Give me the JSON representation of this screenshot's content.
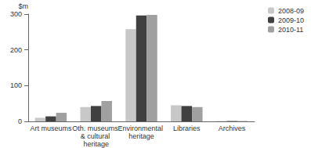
{
  "chart_data": {
    "type": "bar",
    "ylabel": "$m",
    "categories": [
      "Art museums",
      "Oth. museums & cultural heritage",
      "Environmental heritage",
      "Libraries",
      "Archives"
    ],
    "series": [
      {
        "name": "2008-09",
        "color": "#c8c8c8",
        "values": [
          10,
          40,
          258,
          45,
          1
        ]
      },
      {
        "name": "2009-10",
        "color": "#404040",
        "values": [
          14,
          43,
          296,
          43,
          1
        ]
      },
      {
        "name": "2010-11",
        "color": "#a0a0a0",
        "values": [
          24,
          57,
          298,
          40,
          1
        ]
      }
    ],
    "ylim": [
      0,
      300
    ],
    "yticks": [
      0,
      100,
      200,
      300
    ],
    "grid": false,
    "legend": "top-right"
  }
}
